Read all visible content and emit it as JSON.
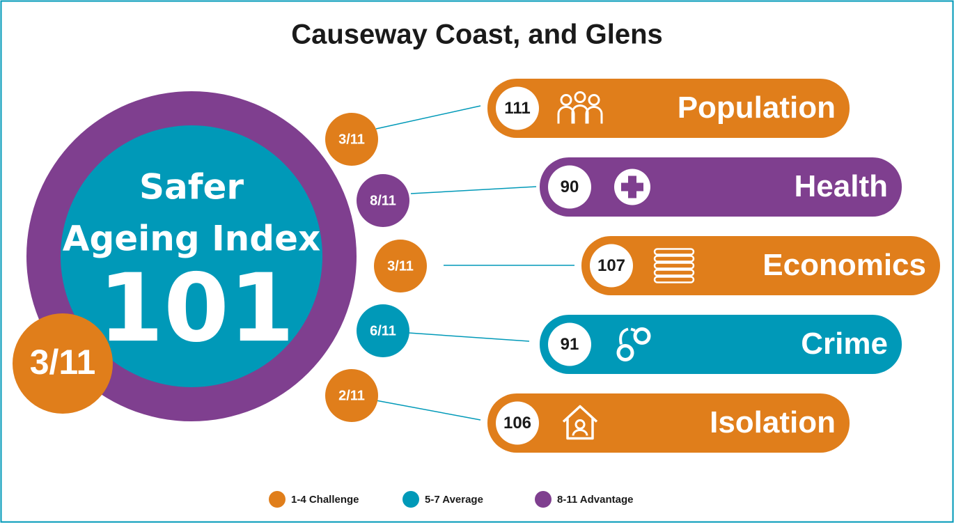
{
  "title": "Causeway Coast, and Glens",
  "index": {
    "label_lines": [
      "Safer",
      "Ageing Index"
    ],
    "value": 101,
    "rank": "3/11",
    "ring_color": "#7f3f8f",
    "core_color": "#0099b8",
    "rank_color": "#e07e1b"
  },
  "domains": [
    {
      "name": "Population",
      "score": 111,
      "rank": "3/11",
      "color": "#e07e1b"
    },
    {
      "name": "Health",
      "score": 90,
      "rank": "8/11",
      "color": "#7f3f8f"
    },
    {
      "name": "Economics",
      "score": 107,
      "rank": "3/11",
      "color": "#e07e1b"
    },
    {
      "name": "Crime",
      "score": 91,
      "rank": "6/11",
      "color": "#0099b8"
    },
    {
      "name": "Isolation",
      "score": 106,
      "rank": "2/11",
      "color": "#e07e1b"
    }
  ],
  "legend": [
    {
      "label": "1-4 Challenge",
      "color": "#e07e1b"
    },
    {
      "label": "5-7 Average",
      "color": "#0099b8"
    },
    {
      "label": "8-11 Advantage",
      "color": "#7f3f8f"
    }
  ]
}
